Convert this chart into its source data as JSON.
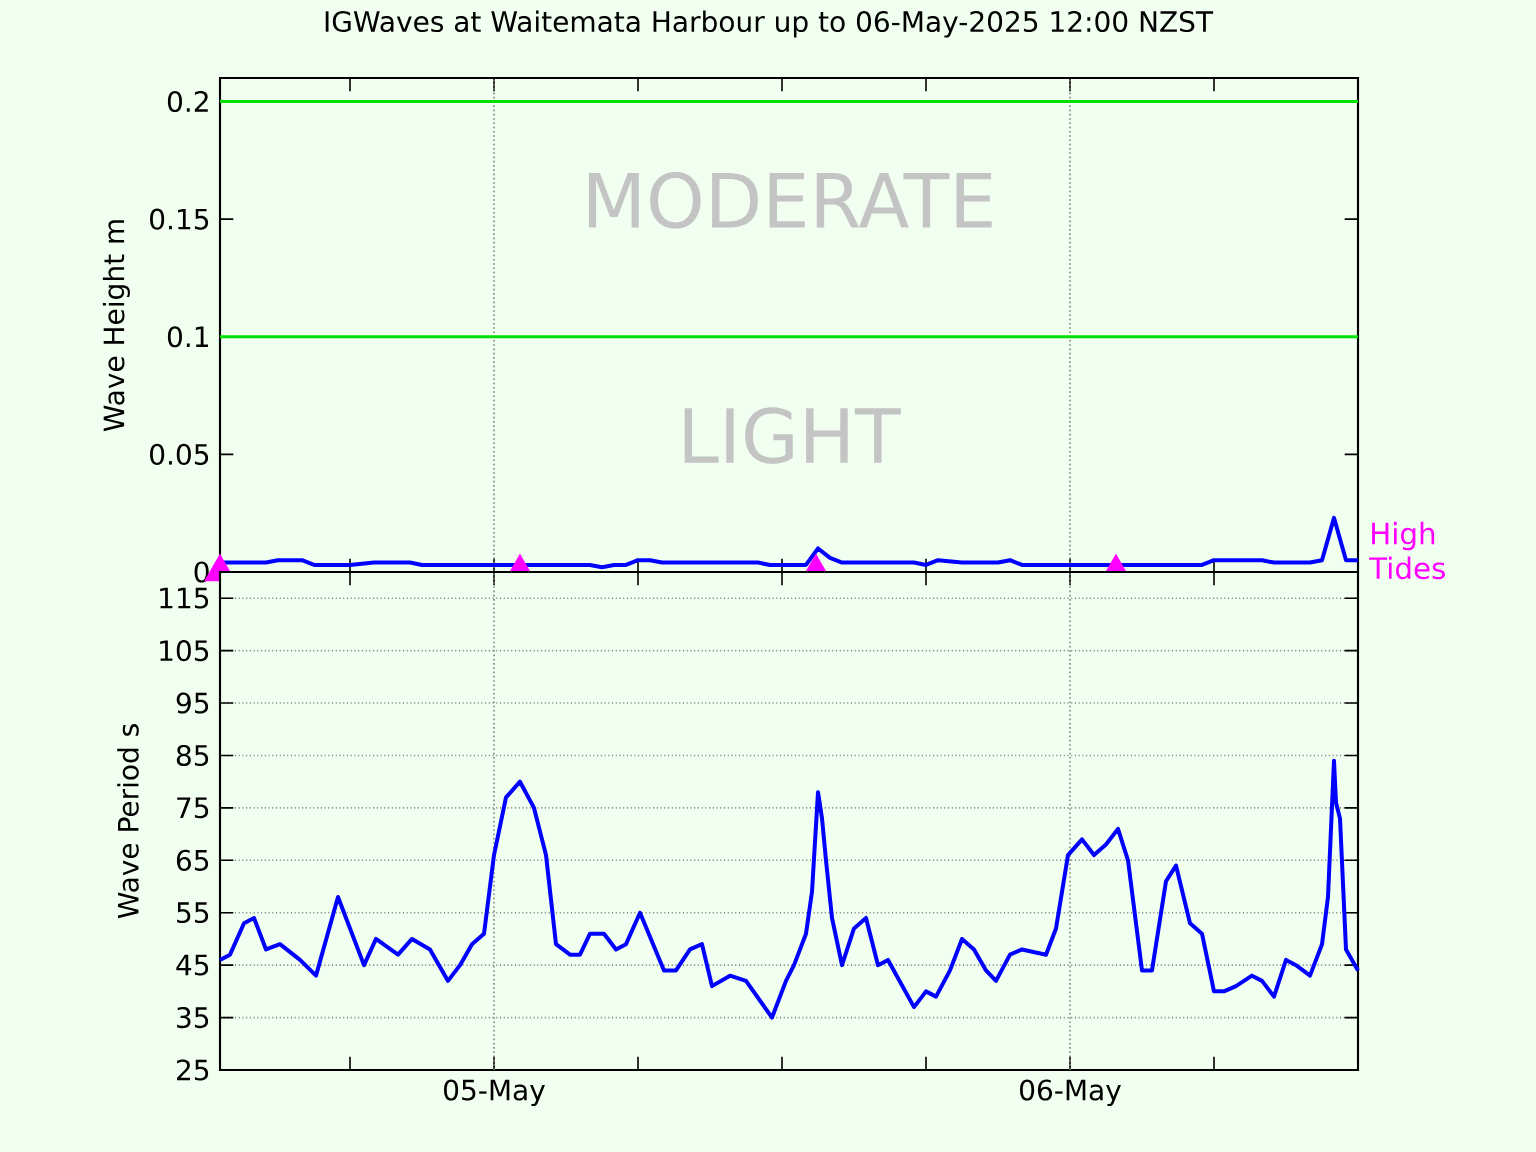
{
  "chart_data": [
    {
      "type": "line",
      "title": "IGWaves at Waitemata Harbour up to 06-May-2025 12:00 NZST",
      "ylabel": "Wave Height m",
      "xlim": [
        "2025-05-04T12:35",
        "2025-05-06T12:00"
      ],
      "xticks": [
        {
          "value": "2025-05-04T18:00",
          "label": null
        },
        {
          "value": "2025-05-05",
          "label": null
        },
        {
          "value": "2025-05-05T06:00",
          "label": null
        },
        {
          "value": "2025-05-05T12:00",
          "label": null
        },
        {
          "value": "2025-05-05T18:00",
          "label": null
        },
        {
          "value": "2025-05-06",
          "label": null
        },
        {
          "value": "2025-05-06T06:00",
          "label": null
        }
      ],
      "ylim": [
        0,
        0.21
      ],
      "yticks": [
        0,
        0.05,
        0.1,
        0.15,
        0.2
      ],
      "tick_labels": "y",
      "grid": "x",
      "ref_lines": [
        {
          "axis": "y",
          "value": 0.1,
          "label": "LIGHT",
          "color": "#00e000"
        },
        {
          "axis": "y",
          "value": 0.2,
          "label": "MODERATE",
          "color": "#00e000"
        }
      ],
      "series": [
        {
          "color": "#0000ff",
          "x": [
            "2025-05-04T12:35",
            "2025-05-04T14:30",
            "2025-05-04T15:00",
            "2025-05-04T16:00",
            "2025-05-04T16:30",
            "2025-05-04T18:00",
            "2025-05-04T19:00",
            "2025-05-04T20:30",
            "2025-05-04T21:00",
            "2025-05-04T22:30",
            "2025-05-04T23:00",
            "2025-05-04T23:30",
            "2025-05-05T00:00",
            "2025-05-05T04:00",
            "2025-05-05T04:30",
            "2025-05-05T05:00",
            "2025-05-05T05:30",
            "2025-05-05T06:00",
            "2025-05-05T06:30",
            "2025-05-05T07:00",
            "2025-05-05T11:00",
            "2025-05-05T11:30",
            "2025-05-05T13:00",
            "2025-05-05T13:30",
            "2025-05-05T14:00",
            "2025-05-05T14:30",
            "2025-05-05T17:30",
            "2025-05-05T18:00",
            "2025-05-05T18:30",
            "2025-05-05T19:30",
            "2025-05-05T21:00",
            "2025-05-05T21:30",
            "2025-05-05T22:00",
            "2025-05-06T03:30",
            "2025-05-06T04:00",
            "2025-05-06T05:30",
            "2025-05-06T06:00",
            "2025-05-06T08:00",
            "2025-05-06T08:30",
            "2025-05-06T10:00",
            "2025-05-06T10:30",
            "2025-05-06T11:00",
            "2025-05-06T11:30",
            "2025-05-06T12:00"
          ],
          "values": [
            0.004,
            0.004,
            0.005,
            0.005,
            0.003,
            0.003,
            0.004,
            0.004,
            0.003,
            0.003,
            0.003,
            0.003,
            0.003,
            0.003,
            0.002,
            0.003,
            0.003,
            0.005,
            0.005,
            0.004,
            0.004,
            0.003,
            0.003,
            0.01,
            0.006,
            0.004,
            0.004,
            0.003,
            0.005,
            0.004,
            0.004,
            0.005,
            0.003,
            0.003,
            0.003,
            0.003,
            0.005,
            0.005,
            0.004,
            0.004,
            0.005,
            0.023,
            0.005,
            0.005
          ]
        },
        {
          "type": "scatter",
          "name": "High Tides",
          "color": "#ff00ff",
          "marker": "triangle",
          "x": [
            "2025-05-04T12:35",
            "2025-05-05T01:05",
            "2025-05-05T13:25",
            "2025-05-06T01:55"
          ],
          "values": [
            0,
            0,
            0,
            0
          ]
        }
      ]
    },
    {
      "type": "line",
      "ylabel": "Wave Period s",
      "xlim": [
        "2025-05-04T12:35",
        "2025-05-06T12:00"
      ],
      "xticks": [
        {
          "value": "2025-05-04T18:00",
          "label": null
        },
        {
          "value": "2025-05-05",
          "label": "05-May"
        },
        {
          "value": "2025-05-05T06:00",
          "label": null
        },
        {
          "value": "2025-05-05T12:00",
          "label": null
        },
        {
          "value": "2025-05-05T18:00",
          "label": null
        },
        {
          "value": "2025-05-06",
          "label": "06-May"
        },
        {
          "value": "2025-05-06T06:00",
          "label": null
        }
      ],
      "ylim": [
        25,
        120
      ],
      "yticks": [
        25,
        35,
        45,
        55,
        65,
        75,
        85,
        95,
        105,
        115
      ],
      "grid": true,
      "series": [
        {
          "color": "#0000ff",
          "x": [
            "2025-05-04T12:35",
            "2025-05-04T13:00",
            "2025-05-04T13:35",
            "2025-05-04T14:00",
            "2025-05-04T14:30",
            "2025-05-04T15:05",
            "2025-05-04T15:55",
            "2025-05-04T16:35",
            "2025-05-04T17:30",
            "2025-05-04T18:35",
            "2025-05-04T19:05",
            "2025-05-04T20:00",
            "2025-05-04T20:35",
            "2025-05-04T21:20",
            "2025-05-04T22:05",
            "2025-05-04T22:35",
            "2025-05-04T23:05",
            "2025-05-04T23:35",
            "2025-05-05T00:00",
            "2025-05-05T00:30",
            "2025-05-05T01:05",
            "2025-05-05T01:40",
            "2025-05-05T02:10",
            "2025-05-05T02:35",
            "2025-05-05T03:10",
            "2025-05-05T03:35",
            "2025-05-05T04:00",
            "2025-05-05T04:35",
            "2025-05-05T05:05",
            "2025-05-05T05:30",
            "2025-05-05T06:05",
            "2025-05-05T07:05",
            "2025-05-05T07:35",
            "2025-05-05T08:10",
            "2025-05-05T08:40",
            "2025-05-05T09:05",
            "2025-05-05T09:50",
            "2025-05-05T10:30",
            "2025-05-05T11:35",
            "2025-05-05T12:10",
            "2025-05-05T12:30",
            "2025-05-05T13:00",
            "2025-05-05T13:15",
            "2025-05-05T13:30",
            "2025-05-05T13:40",
            "2025-05-05T13:50",
            "2025-05-05T14:05",
            "2025-05-05T14:30",
            "2025-05-05T15:00",
            "2025-05-05T15:30",
            "2025-05-05T16:00",
            "2025-05-05T16:25",
            "2025-05-05T17:30",
            "2025-05-05T18:00",
            "2025-05-05T18:25",
            "2025-05-05T19:00",
            "2025-05-05T19:30",
            "2025-05-05T20:00",
            "2025-05-05T20:30",
            "2025-05-05T20:55",
            "2025-05-05T21:30",
            "2025-05-05T22:00",
            "2025-05-05T23:00",
            "2025-05-05T23:25",
            "2025-05-05T23:55",
            "2025-05-06T00:30",
            "2025-05-06T01:00",
            "2025-05-06T01:30",
            "2025-05-06T02:00",
            "2025-05-06T02:25",
            "2025-05-06T03:00",
            "2025-05-06T03:25",
            "2025-05-06T04:00",
            "2025-05-06T04:25",
            "2025-05-06T05:00",
            "2025-05-06T05:30",
            "2025-05-06T06:00",
            "2025-05-06T06:25",
            "2025-05-06T06:55",
            "2025-05-06T07:35",
            "2025-05-06T08:00",
            "2025-05-06T08:30",
            "2025-05-06T09:00",
            "2025-05-06T09:25",
            "2025-05-06T10:00",
            "2025-05-06T10:30",
            "2025-05-06T10:45",
            "2025-05-06T11:00",
            "2025-05-06T11:05",
            "2025-05-06T11:15",
            "2025-05-06T11:30",
            "2025-05-06T12:00"
          ],
          "values": [
            46,
            47,
            53,
            54,
            48,
            49,
            46,
            43,
            58,
            45,
            50,
            47,
            50,
            48,
            42,
            45,
            49,
            51,
            66,
            77,
            80,
            75,
            66,
            49,
            47,
            47,
            51,
            51,
            48,
            49,
            55,
            44,
            44,
            48,
            49,
            41,
            43,
            42,
            35,
            42,
            45,
            51,
            59,
            78,
            73,
            65,
            54,
            45,
            52,
            54,
            45,
            46,
            37,
            40,
            39,
            44,
            50,
            48,
            44,
            42,
            47,
            48,
            47,
            52,
            66,
            69,
            66,
            68,
            71,
            65,
            44,
            44,
            61,
            64,
            53,
            51,
            40,
            40,
            41,
            43,
            42,
            39,
            46,
            45,
            43,
            49,
            58,
            84,
            76,
            73,
            48,
            44
          ]
        }
      ]
    }
  ]
}
